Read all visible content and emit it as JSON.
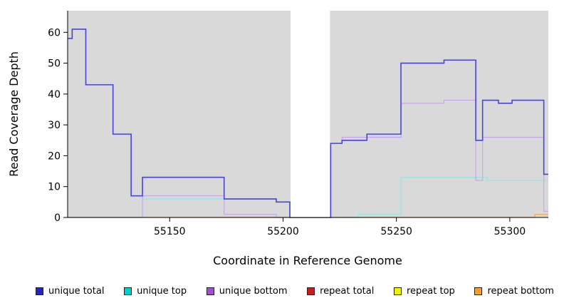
{
  "chart_data": {
    "type": "line",
    "step": "after",
    "title": "",
    "xlabel": "Coordinate in Reference Genome",
    "ylabel": "Read Coverage Depth",
    "xlim": [
      55105,
      55317
    ],
    "ylim": [
      0,
      67
    ],
    "xticks": [
      55150,
      55200,
      55250,
      55300
    ],
    "yticks": [
      0,
      10,
      20,
      30,
      40,
      50,
      60
    ],
    "panel_bg": "#d9d9d9",
    "grid": false,
    "gap_region": {
      "x0": 55203,
      "x1": 55221
    },
    "series": [
      {
        "name": "repeat total",
        "line_color": "#cc2020",
        "width": 1.0,
        "points": [
          [
            55105,
            0
          ],
          [
            55317,
            0
          ]
        ]
      },
      {
        "name": "repeat top",
        "line_color": "#f0f000",
        "width": 1.0,
        "points": [
          [
            55105,
            0
          ],
          [
            55317,
            0
          ]
        ]
      },
      {
        "name": "repeat bottom",
        "line_color": "#ffa733",
        "width": 1.2,
        "points": [
          [
            55105,
            0
          ],
          [
            55311,
            1
          ],
          [
            55317,
            1
          ]
        ]
      },
      {
        "name": "unique top",
        "line_color": "#8de8e8",
        "width": 1.2,
        "points": [
          [
            55105,
            0
          ],
          [
            55138,
            6
          ],
          [
            55197,
            5
          ],
          [
            55203,
            0
          ],
          [
            55233,
            1
          ],
          [
            55252,
            13
          ],
          [
            55290,
            12
          ],
          [
            55317,
            12
          ]
        ]
      },
      {
        "name": "unique bottom",
        "line_color": "#c9a4ec",
        "width": 1.2,
        "points": [
          [
            55105,
            0
          ],
          [
            55138,
            7
          ],
          [
            55174,
            1
          ],
          [
            55197,
            0
          ],
          [
            55221,
            24
          ],
          [
            55226,
            26
          ],
          [
            55252,
            37
          ],
          [
            55271,
            38
          ],
          [
            55285,
            12
          ],
          [
            55288,
            26
          ],
          [
            55315,
            2
          ],
          [
            55317,
            2
          ]
        ]
      },
      {
        "name": "unique total",
        "line_color": "#4545dc",
        "width": 1.6,
        "points": [
          [
            55105,
            58
          ],
          [
            55107,
            61
          ],
          [
            55113,
            43
          ],
          [
            55125,
            27
          ],
          [
            55133,
            7
          ],
          [
            55138,
            13
          ],
          [
            55174,
            6
          ],
          [
            55197,
            5
          ],
          [
            55203,
            0
          ],
          [
            55221,
            24
          ],
          [
            55226,
            25
          ],
          [
            55237,
            27
          ],
          [
            55252,
            50
          ],
          [
            55271,
            51
          ],
          [
            55285,
            25
          ],
          [
            55288,
            38
          ],
          [
            55295,
            37
          ],
          [
            55301,
            38
          ],
          [
            55315,
            14
          ],
          [
            55317,
            14
          ]
        ]
      }
    ],
    "legend_position": "bottom",
    "legend": [
      {
        "label": "unique total",
        "color": "#2323c8"
      },
      {
        "label": "unique top",
        "color": "#00d0d0"
      },
      {
        "label": "unique bottom",
        "color": "#a050d0"
      },
      {
        "label": "repeat total",
        "color": "#c41f1f"
      },
      {
        "label": "repeat top",
        "color": "#f2f200"
      },
      {
        "label": "repeat bottom",
        "color": "#ff9d1e"
      }
    ]
  }
}
